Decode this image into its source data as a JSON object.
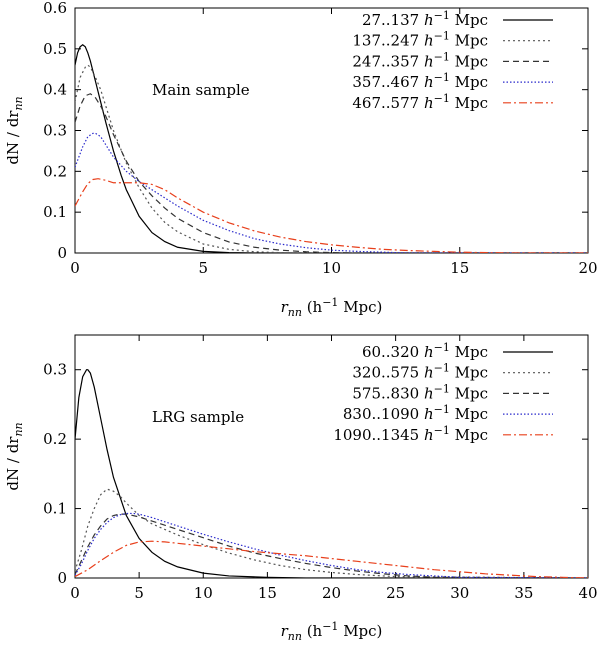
{
  "chart_data": [
    {
      "type": "line",
      "annotation": "Main sample",
      "xlabel_main": "r",
      "xlabel_sub": "nn",
      "xlabel_rest": " (h",
      "xlabel_sup": "−1",
      "xlabel_end": " Mpc)",
      "ylabel_main": "dN / dr",
      "ylabel_sub": "nn",
      "xlim": [
        0,
        20
      ],
      "ylim": [
        0,
        0.6
      ],
      "xticks": [
        0,
        5,
        10,
        15,
        20
      ],
      "xtick_labels": [
        "0",
        "5",
        "10",
        "15",
        "20"
      ],
      "yticks": [
        0,
        0.1,
        0.2,
        0.3,
        0.4,
        0.5,
        0.6
      ],
      "ytick_labels": [
        "0",
        "0.1",
        "0.2",
        "0.3",
        "0.4",
        "0.5",
        "0.6"
      ],
      "legend_position": "top-right",
      "series": [
        {
          "name": "27..137",
          "unit": " Mpc",
          "color": "#000000",
          "dash": "",
          "x": [
            0,
            0.1,
            0.2,
            0.3,
            0.4,
            0.5,
            0.6,
            0.8,
            1.0,
            1.2,
            1.5,
            1.8,
            2.0,
            2.5,
            3.0,
            3.5,
            4.0,
            5.0,
            6.0,
            7.0,
            20
          ],
          "y": [
            0.46,
            0.49,
            0.505,
            0.51,
            0.505,
            0.49,
            0.47,
            0.42,
            0.37,
            0.32,
            0.25,
            0.19,
            0.155,
            0.09,
            0.05,
            0.028,
            0.014,
            0.004,
            0.001,
            0.0,
            0.0
          ]
        },
        {
          "name": "137..247",
          "unit": " Mpc",
          "color": "#555555",
          "dash": "2,3",
          "x": [
            0,
            0.2,
            0.4,
            0.5,
            0.6,
            0.8,
            1.0,
            1.2,
            1.5,
            2.0,
            2.5,
            3.0,
            3.5,
            4.0,
            5.0,
            6.0,
            7.0,
            8.0,
            9.0,
            20
          ],
          "y": [
            0.37,
            0.43,
            0.455,
            0.46,
            0.455,
            0.43,
            0.4,
            0.36,
            0.3,
            0.22,
            0.16,
            0.11,
            0.075,
            0.052,
            0.022,
            0.009,
            0.003,
            0.001,
            0.0,
            0.0
          ]
        },
        {
          "name": "247..357",
          "unit": " Mpc",
          "color": "#333333",
          "dash": "6,4",
          "x": [
            0,
            0.2,
            0.4,
            0.6,
            0.8,
            1.0,
            1.2,
            1.5,
            2.0,
            2.5,
            3.0,
            3.5,
            4.0,
            5.0,
            6.0,
            7.0,
            8.0,
            9.0,
            10.0,
            11.0,
            20
          ],
          "y": [
            0.32,
            0.36,
            0.385,
            0.39,
            0.38,
            0.36,
            0.335,
            0.29,
            0.225,
            0.175,
            0.14,
            0.11,
            0.085,
            0.05,
            0.027,
            0.014,
            0.007,
            0.003,
            0.001,
            0.0,
            0.0
          ]
        },
        {
          "name": "357..467",
          "unit": " Mpc",
          "color": "#2a2acc",
          "dash": "1.5,2",
          "x": [
            0,
            0.3,
            0.5,
            0.7,
            0.8,
            1.0,
            1.2,
            1.5,
            2.0,
            2.5,
            3.0,
            3.5,
            4.0,
            5.0,
            6.0,
            7.0,
            8.0,
            9.0,
            10.0,
            11.0,
            12.0,
            13.0,
            20
          ],
          "y": [
            0.21,
            0.26,
            0.285,
            0.293,
            0.293,
            0.285,
            0.265,
            0.235,
            0.2,
            0.175,
            0.155,
            0.135,
            0.115,
            0.08,
            0.055,
            0.035,
            0.022,
            0.013,
            0.007,
            0.004,
            0.002,
            0.0,
            0.0
          ]
        },
        {
          "name": "467..577",
          "unit": " Mpc",
          "color": "#e8401c",
          "dash": "8,3,2,3",
          "x": [
            0,
            0.3,
            0.5,
            0.7,
            0.9,
            1.2,
            1.5,
            2.0,
            2.5,
            3.0,
            3.5,
            4.0,
            5.0,
            6.0,
            7.0,
            8.0,
            9.0,
            10.0,
            11.0,
            12.0,
            13.0,
            14.0,
            15.0,
            17.0,
            20
          ],
          "y": [
            0.115,
            0.15,
            0.17,
            0.18,
            0.182,
            0.178,
            0.172,
            0.172,
            0.172,
            0.168,
            0.155,
            0.135,
            0.1,
            0.074,
            0.054,
            0.039,
            0.028,
            0.02,
            0.014,
            0.009,
            0.006,
            0.004,
            0.002,
            0.0,
            0.0
          ]
        }
      ]
    },
    {
      "type": "line",
      "annotation": "LRG sample",
      "xlabel_main": "r",
      "xlabel_sub": "nn",
      "xlabel_rest": " (h",
      "xlabel_sup": "−1",
      "xlabel_end": " Mpc)",
      "ylabel_main": "dN / dr",
      "ylabel_sub": "nn",
      "xlim": [
        0,
        40
      ],
      "ylim": [
        0,
        0.35
      ],
      "xticks": [
        0,
        5,
        10,
        15,
        20,
        25,
        30,
        35,
        40
      ],
      "xtick_labels": [
        "0",
        "5",
        "10",
        "15",
        "20",
        "25",
        "30",
        "35",
        "40"
      ],
      "yticks": [
        0,
        0.1,
        0.2,
        0.3
      ],
      "ytick_labels": [
        "0",
        "0.1",
        "0.2",
        "0.3"
      ],
      "legend_position": "top-right",
      "series": [
        {
          "name": "60..320",
          "unit": " Mpc",
          "color": "#000000",
          "dash": "",
          "x": [
            0,
            0.3,
            0.6,
            0.9,
            1.0,
            1.2,
            1.5,
            2.0,
            2.5,
            3.0,
            4.0,
            5.0,
            6.0,
            7.0,
            8.0,
            10.0,
            12.0,
            15.0,
            18.0,
            20.0,
            40
          ],
          "y": [
            0.2,
            0.26,
            0.29,
            0.3,
            0.3,
            0.295,
            0.275,
            0.23,
            0.185,
            0.145,
            0.09,
            0.057,
            0.037,
            0.024,
            0.016,
            0.007,
            0.003,
            0.001,
            0.0,
            0.0,
            0.0
          ]
        },
        {
          "name": "320..575",
          "unit": " Mpc",
          "color": "#555555",
          "dash": "2,3",
          "x": [
            0,
            0.5,
            1.0,
            1.5,
            2.0,
            2.5,
            3.0,
            3.5,
            4.0,
            5.0,
            6.0,
            7.0,
            8.0,
            10.0,
            12.0,
            14.0,
            16.0,
            18.0,
            20.0,
            22.0,
            25.0,
            40
          ],
          "y": [
            0.01,
            0.04,
            0.075,
            0.1,
            0.12,
            0.128,
            0.125,
            0.118,
            0.108,
            0.09,
            0.078,
            0.07,
            0.062,
            0.048,
            0.036,
            0.026,
            0.018,
            0.012,
            0.008,
            0.005,
            0.002,
            0.0
          ]
        },
        {
          "name": "575..830",
          "unit": " Mpc",
          "color": "#333333",
          "dash": "6,4",
          "x": [
            0,
            0.5,
            1.0,
            1.5,
            2.0,
            2.5,
            3.0,
            3.5,
            4.0,
            5.0,
            6.0,
            7.0,
            8.0,
            10.0,
            12.0,
            14.0,
            16.0,
            18.0,
            20.0,
            22.0,
            24.0,
            26.0,
            28.0,
            40
          ],
          "y": [
            0.005,
            0.025,
            0.045,
            0.062,
            0.075,
            0.085,
            0.09,
            0.092,
            0.092,
            0.088,
            0.082,
            0.076,
            0.07,
            0.058,
            0.046,
            0.036,
            0.028,
            0.021,
            0.015,
            0.01,
            0.006,
            0.003,
            0.001,
            0.0
          ]
        },
        {
          "name": "830..1090",
          "unit": " Mpc",
          "color": "#2a2acc",
          "dash": "1.5,2",
          "x": [
            0,
            0.5,
            1.0,
            1.5,
            2.0,
            2.5,
            3.0,
            3.5,
            4.0,
            4.5,
            5.0,
            6.0,
            7.0,
            8.0,
            10.0,
            12.0,
            14.0,
            16.0,
            18.0,
            20.0,
            22.0,
            24.0,
            26.0,
            28.0,
            30.0,
            40
          ],
          "y": [
            0.004,
            0.02,
            0.04,
            0.057,
            0.07,
            0.08,
            0.087,
            0.091,
            0.093,
            0.093,
            0.092,
            0.087,
            0.081,
            0.075,
            0.063,
            0.052,
            0.042,
            0.033,
            0.025,
            0.018,
            0.012,
            0.008,
            0.005,
            0.003,
            0.001,
            0.0
          ]
        },
        {
          "name": "1090..1345",
          "unit": " Mpc",
          "color": "#e8401c",
          "dash": "8,3,2,3",
          "x": [
            0,
            1.0,
            2.0,
            3.0,
            4.0,
            5.0,
            6.0,
            7.0,
            8.0,
            10.0,
            12.0,
            14.0,
            16.0,
            18.0,
            20.0,
            22.0,
            24.0,
            26.0,
            28.0,
            30.0,
            32.0,
            34.0,
            36.0,
            38.0,
            40
          ],
          "y": [
            0.002,
            0.012,
            0.025,
            0.037,
            0.047,
            0.052,
            0.053,
            0.052,
            0.05,
            0.046,
            0.042,
            0.038,
            0.035,
            0.032,
            0.028,
            0.024,
            0.02,
            0.016,
            0.012,
            0.009,
            0.006,
            0.004,
            0.002,
            0.001,
            0.0
          ]
        }
      ]
    }
  ]
}
